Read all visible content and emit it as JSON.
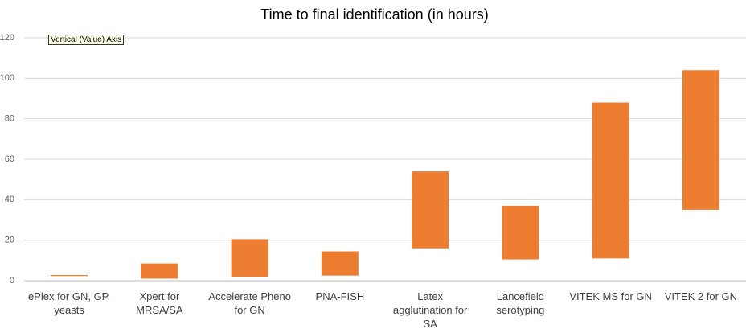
{
  "chart_data": {
    "type": "range-bar",
    "title": "Time to final identification (in hours)",
    "tooltip": "Vertical (Value) Axis",
    "categories": [
      "ePlex for GN, GP, yeasts",
      "Xpert for MRSA/SA",
      "Accelerate Pheno for GN",
      "PNA-FISH",
      "Latex agglutination for SA",
      "Lancefield serotyping",
      "VITEK MS for GN",
      "VITEK 2 for GN"
    ],
    "low": [
      2.3,
      1,
      2,
      2.5,
      16,
      10.5,
      11,
      35
    ],
    "high": [
      2.8,
      8.5,
      20.5,
      14.5,
      54,
      37,
      88,
      104
    ],
    "color": "#ed7d31",
    "ylim": [
      0,
      120
    ],
    "yticks": [
      0,
      20,
      40,
      60,
      80,
      100,
      120
    ],
    "grid": true
  }
}
